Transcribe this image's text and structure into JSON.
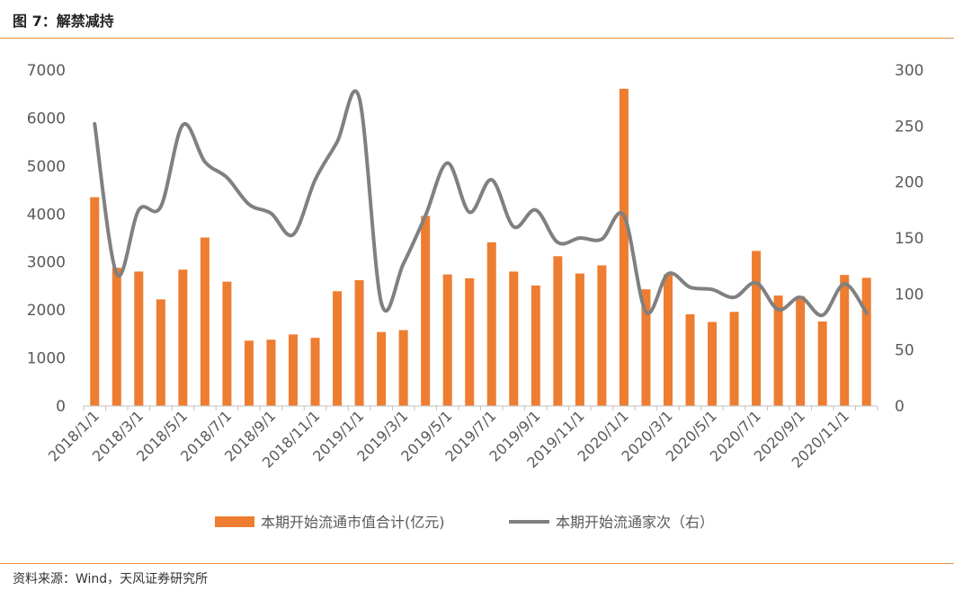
{
  "figure": {
    "title": "图 7：解禁减持",
    "source": "资料来源：Wind，天风证券研究所"
  },
  "colors": {
    "accent": "#e8913f",
    "bars": "#ed7d31",
    "line": "#808080",
    "axis": "#bfbfbf",
    "text": "#595959"
  },
  "chart_data": {
    "type": "bar",
    "title": "",
    "xlabel": "",
    "ylabel": "",
    "y2label": "",
    "ylim": [
      0,
      7000
    ],
    "y2lim": [
      0,
      300
    ],
    "yticks": [
      0,
      1000,
      2000,
      3000,
      4000,
      5000,
      6000,
      7000
    ],
    "y2ticks": [
      0,
      50,
      100,
      150,
      200,
      250,
      300
    ],
    "grid": false,
    "legend_position": "bottom",
    "categories": [
      "2018/1/1",
      "2018/2/1",
      "2018/3/1",
      "2018/4/1",
      "2018/5/1",
      "2018/6/1",
      "2018/7/1",
      "2018/8/1",
      "2018/9/1",
      "2018/10/1",
      "2018/11/1",
      "2018/12/1",
      "2019/1/1",
      "2019/2/1",
      "2019/3/1",
      "2019/4/1",
      "2019/5/1",
      "2019/6/1",
      "2019/7/1",
      "2019/8/1",
      "2019/9/1",
      "2019/10/1",
      "2019/11/1",
      "2019/12/1",
      "2020/1/1",
      "2020/2/1",
      "2020/3/1",
      "2020/4/1",
      "2020/5/1",
      "2020/6/1",
      "2020/7/1",
      "2020/8/1",
      "2020/9/1",
      "2020/10/1",
      "2020/11/1",
      "2020/12/1"
    ],
    "x_tick_labels": [
      "2018/1/1",
      "2018/3/1",
      "2018/5/1",
      "2018/7/1",
      "2018/9/1",
      "2018/11/1",
      "2019/1/1",
      "2019/3/1",
      "2019/5/1",
      "2019/7/1",
      "2019/9/1",
      "2019/11/1",
      "2020/1/1",
      "2020/3/1",
      "2020/5/1",
      "2020/7/1",
      "2020/9/1",
      "2020/11/1"
    ],
    "series": [
      {
        "name": "本期开始流通市值合计(亿元)",
        "type": "bar",
        "axis": "left",
        "values": [
          4350,
          2880,
          2800,
          2220,
          2840,
          3510,
          2590,
          1360,
          1380,
          1490,
          1420,
          2390,
          2620,
          1540,
          1580,
          3960,
          2740,
          2660,
          3410,
          2800,
          2510,
          3120,
          2760,
          2930,
          6610,
          2430,
          2740,
          1910,
          1750,
          1960,
          3230,
          2300,
          2290,
          1760,
          2730,
          2670
        ]
      },
      {
        "name": "本期开始流通家次（右）",
        "type": "line",
        "axis": "right",
        "values": [
          252,
          118,
          175,
          178,
          251,
          218,
          204,
          180,
          172,
          153,
          202,
          236,
          275,
          92,
          127,
          170,
          217,
          173,
          202,
          160,
          175,
          146,
          150,
          149,
          170,
          84,
          118,
          106,
          104,
          97,
          110,
          86,
          97,
          81,
          109,
          83
        ]
      }
    ]
  }
}
